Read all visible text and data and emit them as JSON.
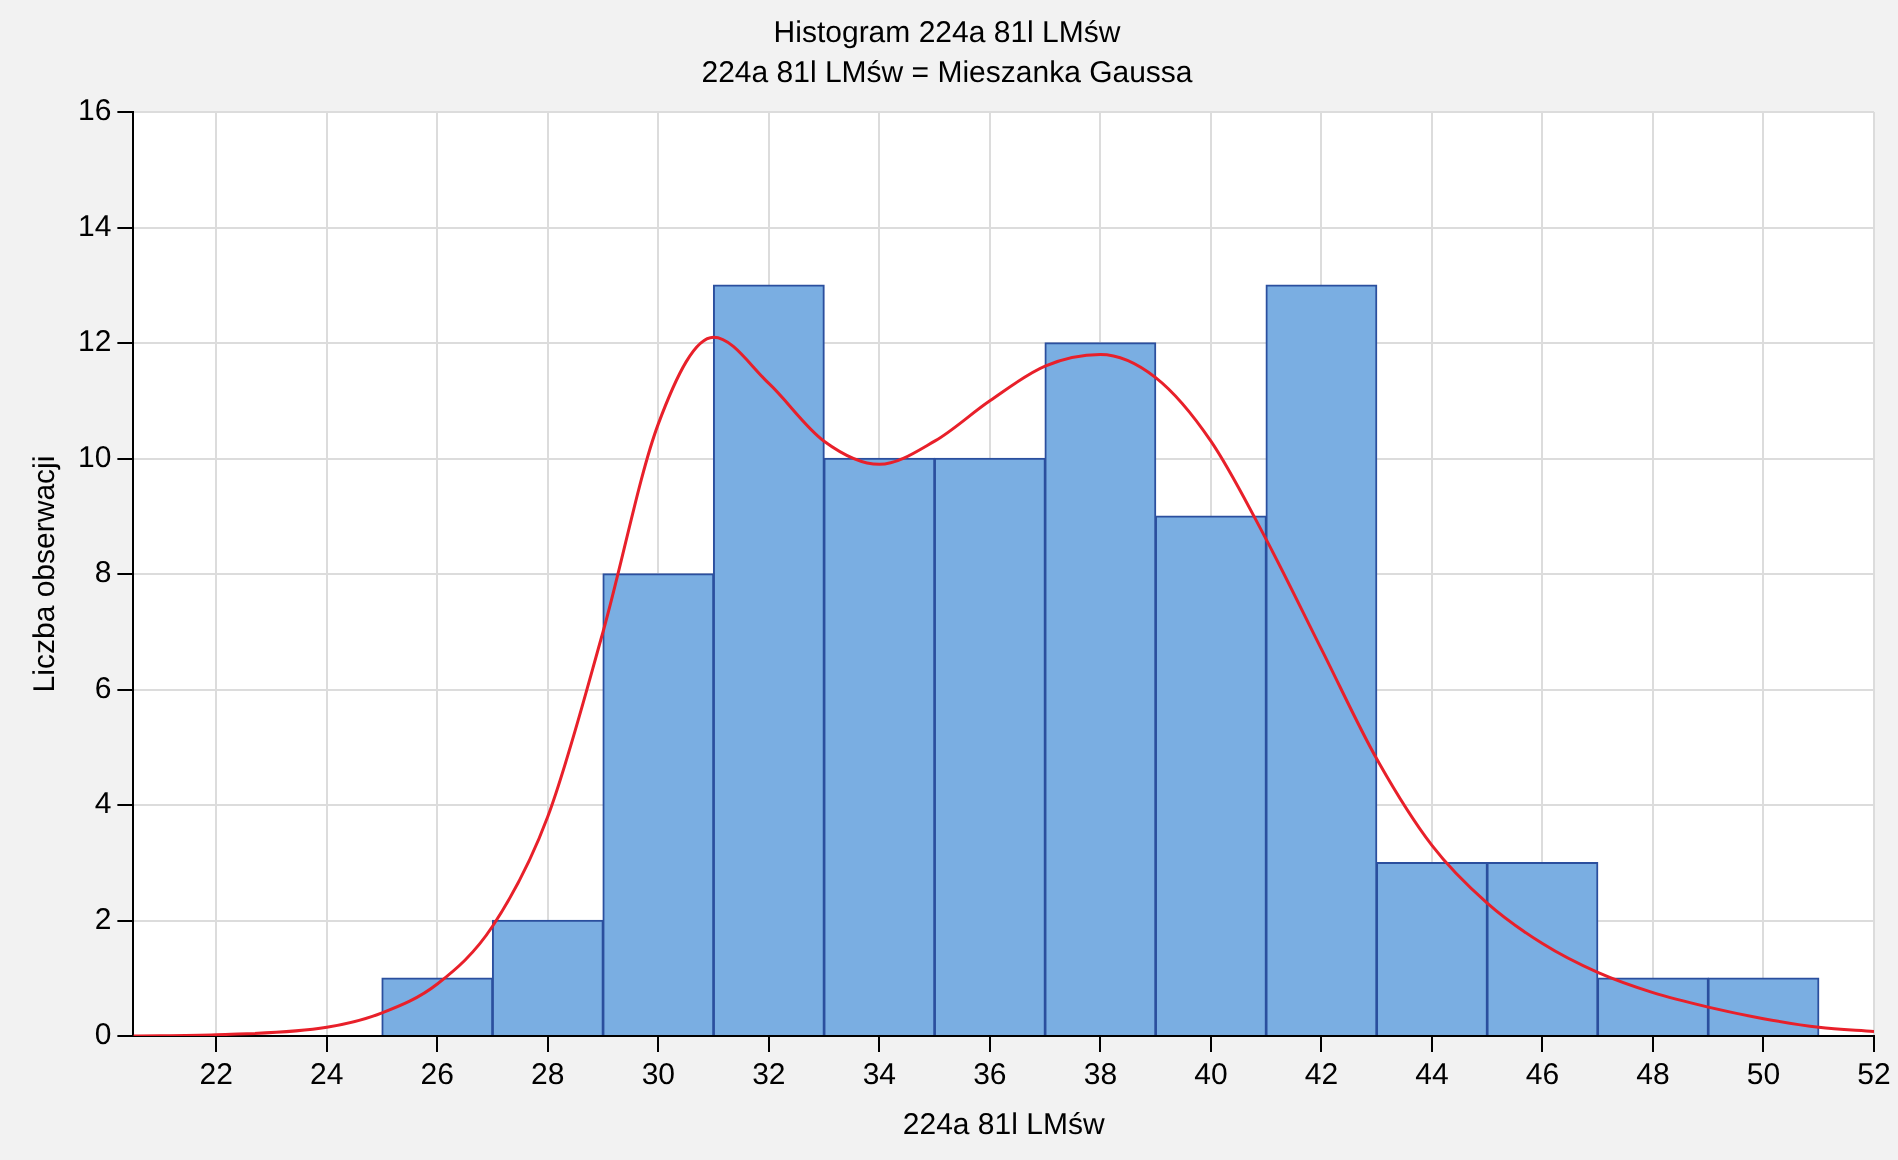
{
  "chart_data": {
    "type": "histogram",
    "title": "Histogram 224a 81l LMśw",
    "subtitle": "224a 81l LMśw = Mieszanka Gaussa",
    "xlabel": "224a 81l LMśw",
    "ylabel": "Liczba obserwacji",
    "bins": [
      25,
      27,
      29,
      31,
      33,
      35,
      37,
      39,
      41,
      43,
      45,
      47,
      49,
      51
    ],
    "values": [
      1,
      2,
      8,
      13,
      10,
      10,
      12,
      9,
      13,
      3,
      3,
      1,
      1
    ],
    "color": "#7aaee2",
    "series": [
      {
        "type": "line",
        "color": "#e8202a",
        "x": [
          20.5,
          22,
          24,
          25,
          26,
          27,
          28,
          29,
          30,
          31,
          32,
          33,
          34,
          35,
          36,
          37,
          38,
          39,
          40,
          41,
          42,
          43,
          44,
          45,
          46,
          47,
          48,
          49,
          50,
          51,
          52
        ],
        "values": [
          0,
          0.02,
          0.15,
          0.4,
          0.9,
          1.9,
          3.8,
          7,
          10.6,
          12.1,
          11.3,
          10.3,
          9.9,
          10.3,
          11,
          11.6,
          11.8,
          11.4,
          10.3,
          8.6,
          6.7,
          4.8,
          3.3,
          2.3,
          1.6,
          1.1,
          0.75,
          0.5,
          0.3,
          0.15,
          0.08
        ]
      }
    ],
    "xlim": [
      20.5,
      52
    ],
    "xticks": [
      22,
      24,
      26,
      28,
      30,
      32,
      34,
      36,
      38,
      40,
      42,
      44,
      46,
      48,
      50,
      52
    ],
    "ylim": [
      0,
      16
    ],
    "yticks": [
      0,
      2,
      4,
      6,
      8,
      10,
      12,
      14,
      16
    ],
    "grid": true,
    "legend": false
  }
}
